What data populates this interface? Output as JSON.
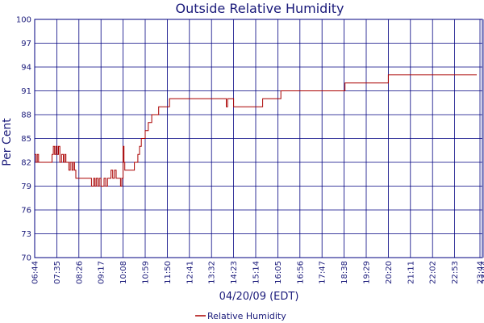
{
  "chart_data": {
    "type": "line",
    "title": "Outside Relative Humidity",
    "xlabel": "04/20/09 (EDT)",
    "ylabel": "Per Cent",
    "ylim": [
      70,
      100
    ],
    "yticks": [
      70,
      73,
      76,
      79,
      82,
      85,
      88,
      91,
      94,
      97,
      100
    ],
    "xticks": [
      "06:44",
      "07:35",
      "08:26",
      "09:17",
      "10:08",
      "10:59",
      "11:50",
      "12:41",
      "13:32",
      "14:23",
      "15:14",
      "16:05",
      "16:56",
      "17:47",
      "18:38",
      "19:29",
      "20:20",
      "21:11",
      "22:02",
      "22:53",
      "23:44",
      "23:44"
    ],
    "grid": true,
    "legend_position": "bottom",
    "colors": {
      "series": "#aa0000",
      "grid": "#000080",
      "text": "#1a1a7a"
    },
    "series": [
      {
        "name": "Relative Humidity",
        "x": [
          "06:44",
          "06:47",
          "06:50",
          "06:53",
          "07:00",
          "07:10",
          "07:20",
          "07:24",
          "07:27",
          "07:30",
          "07:33",
          "07:36",
          "07:39",
          "07:42",
          "07:46",
          "07:50",
          "07:53",
          "07:56",
          "08:00",
          "08:03",
          "08:06",
          "08:10",
          "08:13",
          "08:16",
          "08:19",
          "08:22",
          "08:26",
          "08:30",
          "08:40",
          "08:50",
          "08:55",
          "09:00",
          "09:03",
          "09:06",
          "09:10",
          "09:13",
          "09:17",
          "09:20",
          "09:24",
          "09:28",
          "09:32",
          "09:36",
          "09:40",
          "09:44",
          "09:48",
          "09:52",
          "09:55",
          "09:58",
          "10:02",
          "10:05",
          "10:08",
          "10:10",
          "10:12",
          "10:16",
          "10:20",
          "10:25",
          "10:30",
          "10:34",
          "10:38",
          "10:42",
          "10:46",
          "10:50",
          "10:55",
          "10:59",
          "11:02",
          "11:06",
          "11:10",
          "11:14",
          "11:18",
          "11:22",
          "11:26",
          "11:30",
          "11:35",
          "11:40",
          "11:45",
          "11:50",
          "11:55",
          "12:00",
          "12:10",
          "12:20",
          "12:30",
          "12:41",
          "13:00",
          "13:20",
          "13:32",
          "13:50",
          "14:03",
          "14:06",
          "14:09",
          "14:15",
          "14:23",
          "14:30",
          "14:40",
          "14:50",
          "15:00",
          "15:14",
          "15:20",
          "15:30",
          "15:40",
          "15:50",
          "16:00",
          "16:05",
          "16:08",
          "16:12",
          "16:16",
          "16:30",
          "16:45",
          "16:56",
          "17:10",
          "17:30",
          "17:47",
          "18:00",
          "18:20",
          "18:36",
          "18:40",
          "18:50",
          "19:10",
          "19:29",
          "19:50",
          "20:00",
          "20:20",
          "20:40",
          "21:11",
          "21:40",
          "22:02",
          "22:30",
          "22:53",
          "23:20",
          "23:44"
        ],
        "values": [
          83,
          82,
          83,
          82,
          82,
          82,
          82,
          83,
          84,
          83,
          84,
          83,
          84,
          82,
          83,
          82,
          83,
          82,
          82,
          81,
          82,
          81,
          82,
          81,
          80,
          80,
          80,
          80,
          80,
          80,
          79,
          80,
          79,
          80,
          79,
          80,
          79,
          79,
          80,
          79,
          80,
          80,
          81,
          80,
          81,
          80,
          80,
          80,
          79,
          80,
          84,
          82,
          81,
          81,
          81,
          81,
          81,
          82,
          82,
          83,
          84,
          85,
          85,
          86,
          86,
          87,
          87,
          88,
          88,
          88,
          88,
          89,
          89,
          89,
          89,
          89,
          90,
          90,
          90,
          90,
          90,
          90,
          90,
          90,
          90,
          90,
          90,
          89,
          90,
          90,
          89,
          89,
          89,
          89,
          89,
          89,
          89,
          90,
          90,
          90,
          90,
          90,
          90,
          91,
          91,
          91,
          91,
          91,
          91,
          91,
          91,
          91,
          91,
          91,
          92,
          92,
          92,
          92,
          92,
          92,
          93,
          93,
          93,
          93,
          93,
          93,
          93,
          93,
          93
        ]
      }
    ]
  }
}
